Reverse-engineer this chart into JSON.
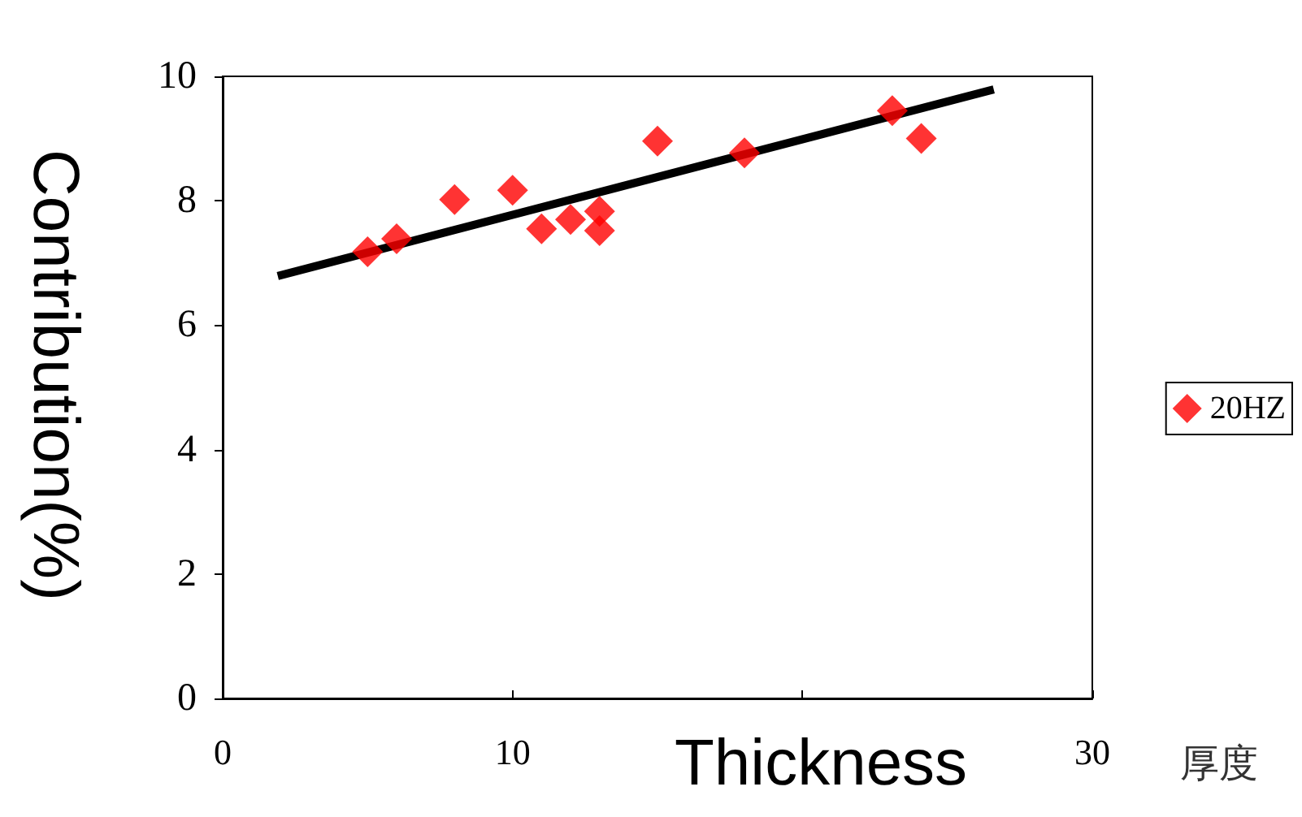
{
  "chart_data": {
    "type": "scatter",
    "xlabel": "Thickness",
    "ylabel": "Contribution(%)",
    "annotations": [
      "厚度"
    ],
    "series": [
      {
        "name": "20HZ",
        "color": "#ff0000",
        "x": [
          5,
          6,
          8,
          10,
          11,
          12,
          13,
          13,
          15,
          18,
          23.1,
          24.1
        ],
        "values": [
          7.18,
          7.39,
          8.02,
          8.17,
          7.55,
          7.7,
          7.83,
          7.52,
          8.96,
          8.77,
          9.45,
          9.0
        ]
      },
      {
        "type": "line",
        "color": "#000000",
        "x": [
          1.9,
          26.6
        ],
        "values": [
          6.79,
          9.79
        ],
        "marker": "none"
      }
    ],
    "marker": "diamond",
    "xlim": [
      0,
      30
    ],
    "xticks": [
      0,
      10,
      {
        "value": 20,
        "label": null
      },
      30
    ],
    "ylim": [
      0,
      10
    ],
    "yticks": [
      0,
      2,
      4,
      6,
      8,
      10
    ],
    "grid": false,
    "legend": "right"
  }
}
